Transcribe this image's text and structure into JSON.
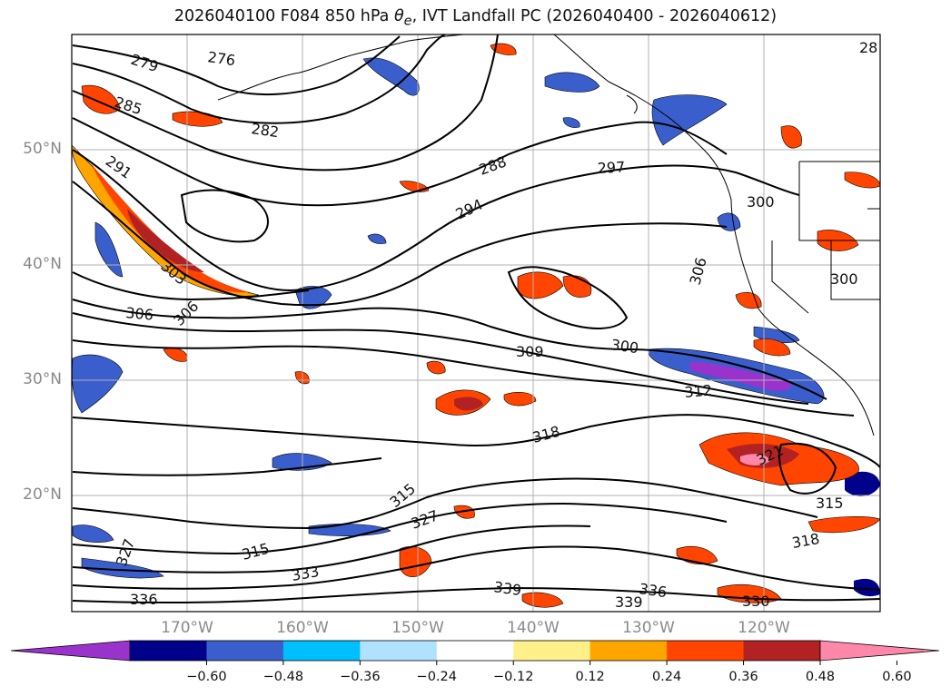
{
  "title": {
    "prefix": "2026040100 F084 850 hPa ",
    "theta_symbol": "θ",
    "theta_sub": "e",
    "suffix": ", IVT Landfall PC (2026040400 - 2026040612)"
  },
  "map": {
    "lat_labels": [
      "50°N",
      "40°N",
      "30°N",
      "20°N"
    ],
    "lon_labels": [
      "170°W",
      "160°W",
      "150°W",
      "140°W",
      "130°W",
      "120°W"
    ],
    "contour_labels": [
      "279",
      "276",
      "285",
      "282",
      "291",
      "288",
      "297",
      "294",
      "300",
      "303",
      "306",
      "306",
      "306",
      "309",
      "300",
      "312",
      "318",
      "321",
      "315",
      "318",
      "315",
      "315",
      "327",
      "327",
      "333",
      "336",
      "339",
      "339",
      "336",
      "330",
      "300",
      "28"
    ],
    "colors": {
      "coast": "#000000",
      "grid": "#b0b0b0",
      "contour": "#000000"
    }
  },
  "colorbar": {
    "ticks": [
      "−0.60",
      "−0.48",
      "−0.36",
      "−0.24",
      "−0.12",
      "0.12",
      "0.24",
      "0.36",
      "0.48",
      "0.60"
    ],
    "colors": [
      "#9933cc",
      "#00008b",
      "#3a5fcd",
      "#00bfff",
      "#b0e2ff",
      "#ffffff",
      "#fff08a",
      "#ffa500",
      "#ff4500",
      "#b22222",
      "#ff88aa"
    ]
  }
}
